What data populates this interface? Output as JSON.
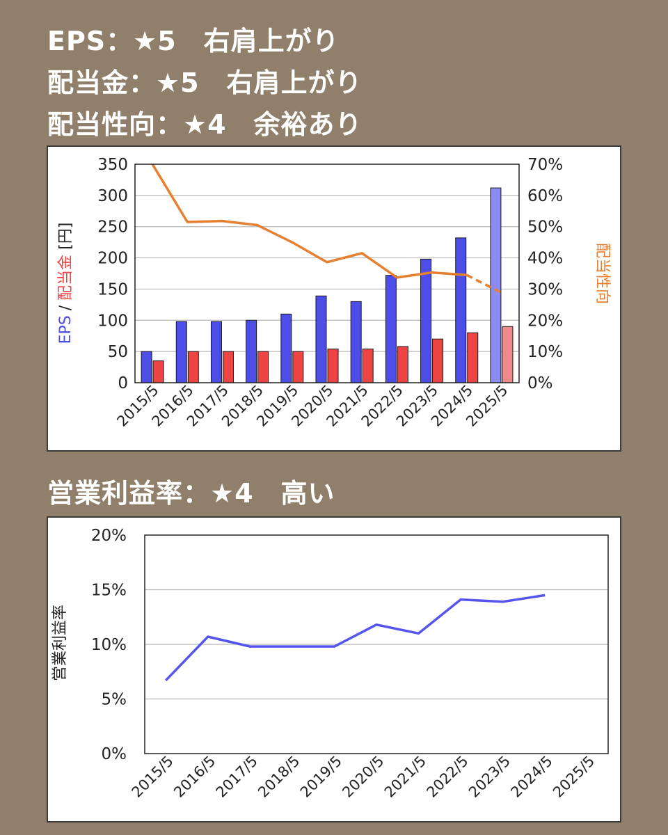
{
  "headings": {
    "eps": "EPS：★5　右肩上がり",
    "dividend": "配当金：★5　右肩上がり",
    "payout": "配当性向：★4　余裕あり",
    "margin": "営業利益率：★4　高い"
  },
  "colors": {
    "background": "#8f7f6b",
    "eps": "#4d4de8",
    "eps_forecast": "#8c8cf0",
    "dividend": "#ee4444",
    "dividend_forecast": "#f08a8a",
    "payout": "#e67f30",
    "margin": "#5555ee"
  },
  "chart_data": [
    {
      "type": "bar",
      "categories": [
        "2015/5",
        "2016/5",
        "2017/5",
        "2018/5",
        "2019/5",
        "2020/5",
        "2021/5",
        "2022/5",
        "2023/5",
        "2024/5",
        "2025/5"
      ],
      "series": [
        {
          "name": "EPS",
          "values": [
            50,
            98,
            98,
            100,
            110,
            139,
            130,
            172,
            198,
            232,
            312
          ]
        },
        {
          "name": "配当金",
          "values": [
            35,
            50,
            50,
            50,
            50,
            54,
            54,
            58,
            70,
            80,
            90
          ]
        },
        {
          "name": "配当性向",
          "axis": "right",
          "line": true,
          "values": [
            70,
            51.5,
            51.8,
            50.5,
            45,
            38.6,
            41.5,
            33.7,
            35.3,
            34.5,
            28.8
          ]
        }
      ],
      "forecast_index": 10,
      "ylabel_parts": [
        "EPS",
        " / ",
        "配当金",
        " [円]"
      ],
      "y2label": "配当性向",
      "ylim": [
        0,
        350
      ],
      "y2lim": [
        0,
        70
      ],
      "yticks": [
        "0",
        "50",
        "100",
        "150",
        "200",
        "250",
        "300",
        "350"
      ],
      "y2ticks": [
        "0%",
        "10%",
        "20%",
        "30%",
        "40%",
        "50%",
        "60%",
        "70%"
      ],
      "grid": true
    },
    {
      "type": "line",
      "categories": [
        "2015/5",
        "2016/5",
        "2017/5",
        "2018/5",
        "2019/5",
        "2020/5",
        "2021/5",
        "2022/5",
        "2023/5",
        "2024/5",
        "2025/5"
      ],
      "series": [
        {
          "name": "営業利益率",
          "values": [
            6.7,
            10.7,
            9.8,
            9.8,
            9.8,
            11.8,
            11.0,
            14.1,
            13.9,
            14.5,
            null
          ]
        }
      ],
      "ylabel": "営業利益率",
      "ylim": [
        0,
        20
      ],
      "yticks": [
        "0%",
        "5%",
        "10%",
        "15%",
        "20%"
      ],
      "grid": true
    }
  ]
}
